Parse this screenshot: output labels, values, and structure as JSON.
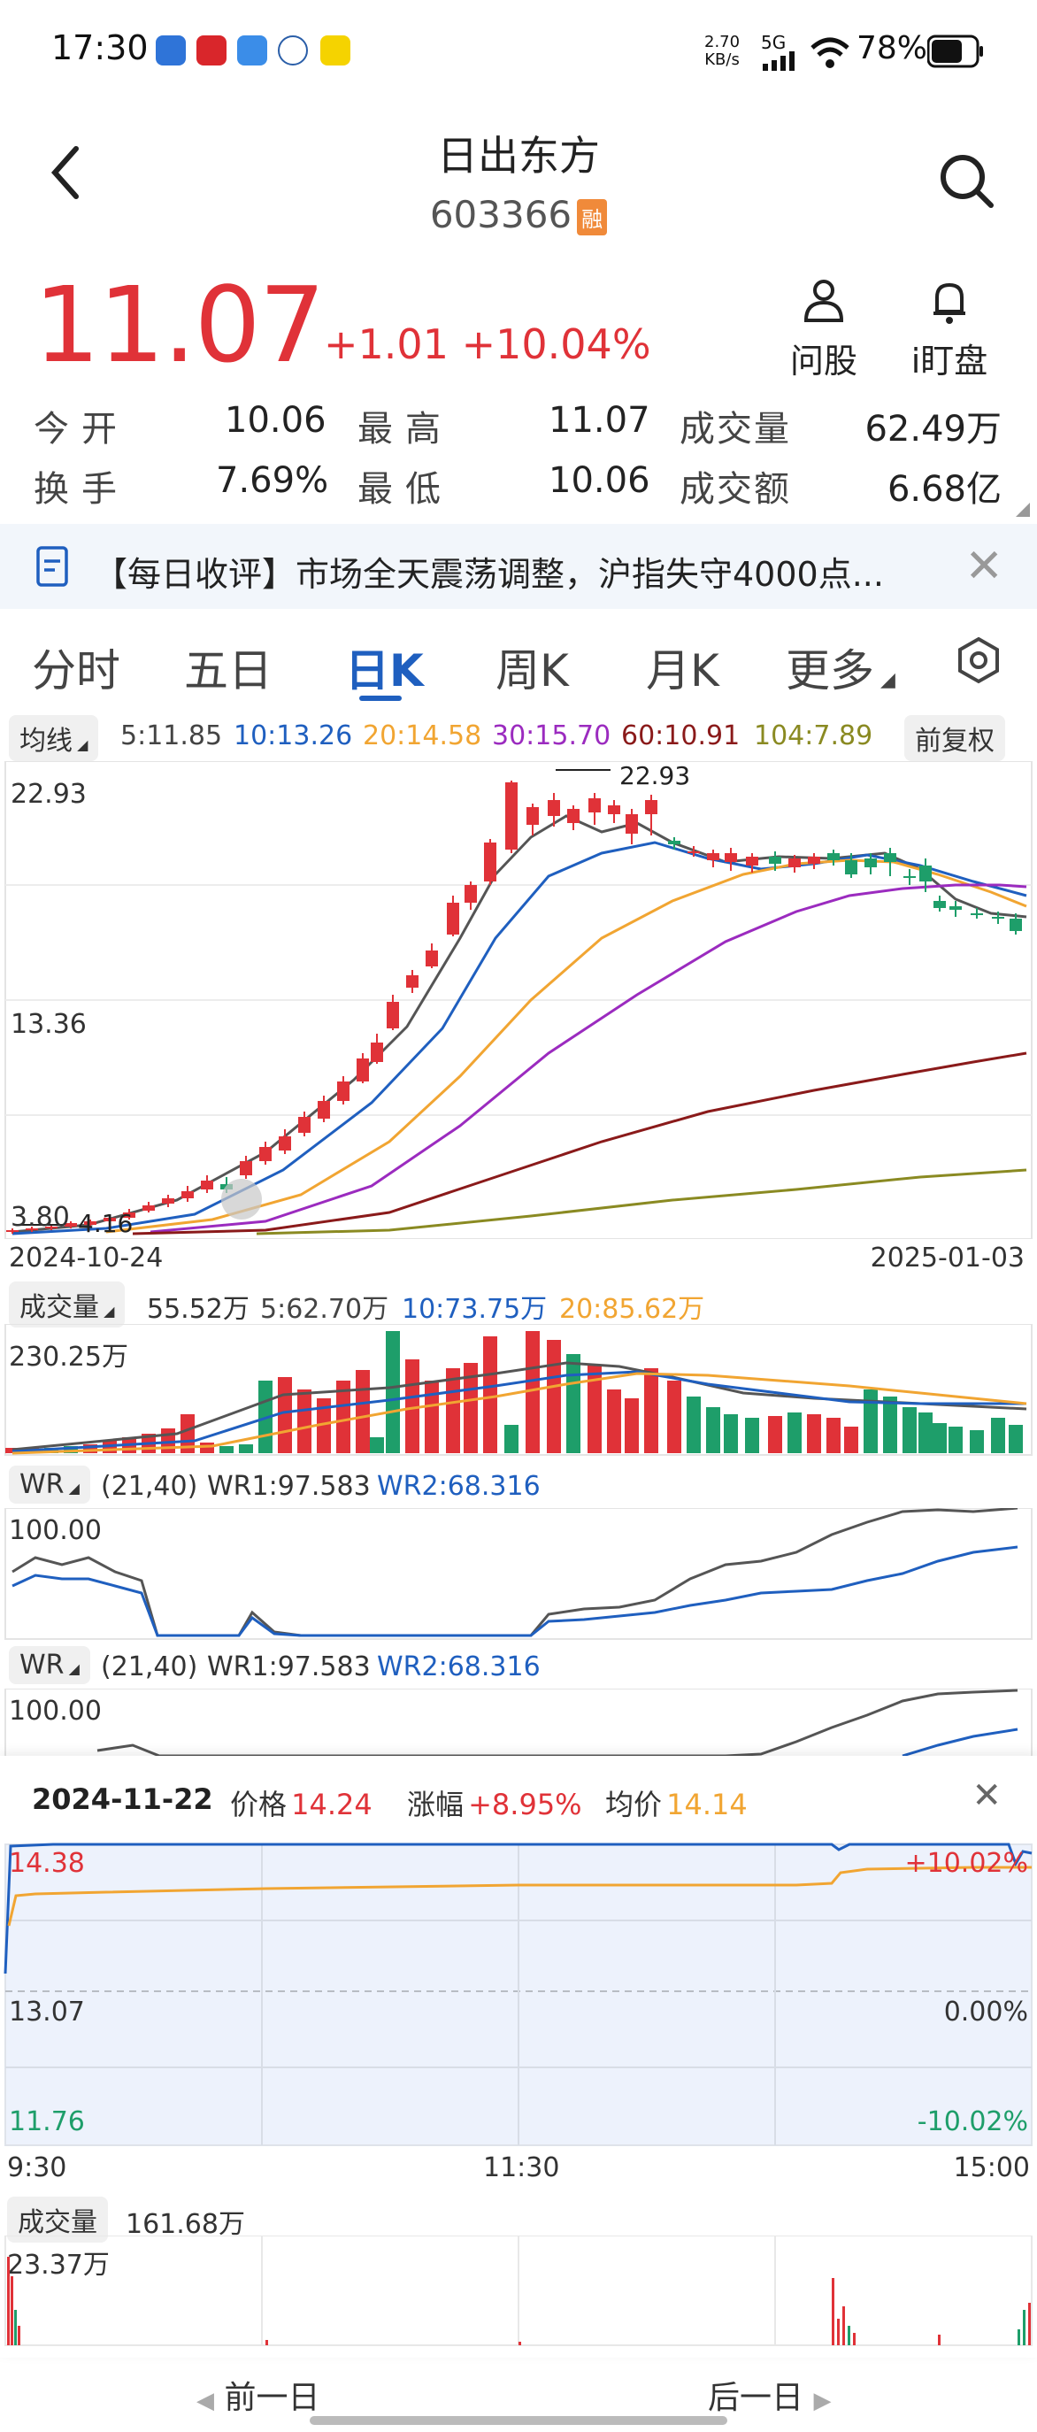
{
  "status_bar": {
    "time": "17:30",
    "net_speed_top": "2.70",
    "net_speed_unit": "KB/s",
    "network": "5G",
    "battery": "78%"
  },
  "header": {
    "title": "日出东方",
    "code": "603366",
    "margin_badge": "融"
  },
  "quote": {
    "price": "11.07",
    "change": "+1.01",
    "change_pct": "+10.04%",
    "ask_label": "问股",
    "watch_label": "i盯盘",
    "rows": [
      {
        "l1": "今开",
        "v1": "10.06",
        "l2": "最高",
        "v2": "11.07",
        "l3": "成交量",
        "v3": "62.49万"
      },
      {
        "l1": "换手",
        "v1": "7.69%",
        "l2": "最低",
        "v2": "10.06",
        "l3": "成交额",
        "v3": "6.68亿"
      }
    ]
  },
  "news": {
    "text": "【每日收评】市场全天震荡调整，沪指失守4000点...",
    "close": "✕"
  },
  "tabs": [
    "分时",
    "五日",
    "日K",
    "周K",
    "月K",
    "更多"
  ],
  "active_tab": 2,
  "ma": {
    "selector": "均线",
    "ma5": "5:11.85",
    "ma10": "10:13.26",
    "ma20": "20:14.58",
    "ma30": "30:15.70",
    "ma60": "60:10.91",
    "ma104": "104:7.89",
    "adjust": "前复权"
  },
  "kline": {
    "y_top": "22.93",
    "y_mid": "13.36",
    "y_bot": "3.80",
    "max_mark": "22.93",
    "min_mark": "4.16",
    "date_start": "2024-10-24",
    "date_end": "2025-01-03"
  },
  "volume": {
    "selector": "成交量",
    "v": "55.52万",
    "ma5": "5:62.70万",
    "ma10": "10:73.75万",
    "ma20": "20:85.62万",
    "max": "230.25万"
  },
  "wr1": {
    "selector": "WR",
    "params": "(21,40)",
    "wr1": "WR1:97.583",
    "wr2": "WR2:68.316",
    "top": "100.00"
  },
  "wr2": {
    "selector": "WR",
    "params": "(21,40)",
    "wr1": "WR1:97.583",
    "wr2": "WR2:68.316",
    "top": "100.00"
  },
  "intraday": {
    "date": "2024-11-22",
    "price_label": "价格",
    "price": "14.24",
    "chg_label": "涨幅",
    "chg": "+8.95%",
    "avg_label": "均价",
    "avg": "14.14",
    "close": "✕",
    "y_high": "14.38",
    "y_mid": "13.07",
    "y_low": "11.76",
    "pct_high": "+10.02%",
    "pct_mid": "0.00%",
    "pct_low": "-10.02%",
    "t_start": "9:30",
    "t_mid": "11:30",
    "t_end": "15:00",
    "vol_selector": "成交量",
    "vol": "161.68万",
    "vol_max": "23.37万"
  },
  "nav": {
    "prev": "前一日",
    "next": "后一日"
  },
  "colors": {
    "up": "#e03238",
    "down": "#1e9e6a",
    "ma5": "#555555",
    "ma10": "#1f5fbf",
    "ma20": "#f1a532",
    "ma30": "#9b2bbf",
    "ma60": "#8a1a1a",
    "ma104": "#8a8a22"
  },
  "chart_data": {
    "type": "candlestick",
    "y_range": [
      3.8,
      22.93
    ],
    "high": 22.93,
    "low": 4.16,
    "x_range": [
      "2024-10-24",
      "2025-01-03"
    ]
  }
}
